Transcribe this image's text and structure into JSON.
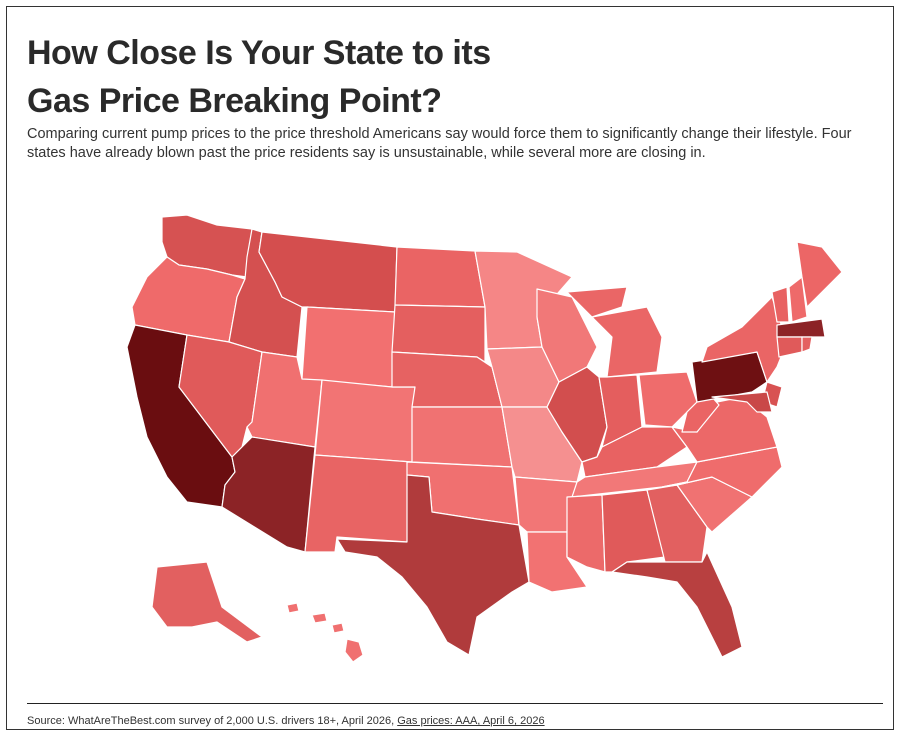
{
  "header": {
    "title": "How Close Is Your State to its Gas Price Breaking Point?",
    "subtitle": "Comparing current pump prices to the price threshold Americans say would force them to significantly change their lifestyle. Four states have already blown past the price residents say is unsustainable, while several more are closing in."
  },
  "footer": {
    "source": "Source: WhatAreTheBest.com survey of 2,000 U.S. drivers 18+, April 2026,",
    "link": "Gas prices: AAA, April 6, 2026"
  }
}
